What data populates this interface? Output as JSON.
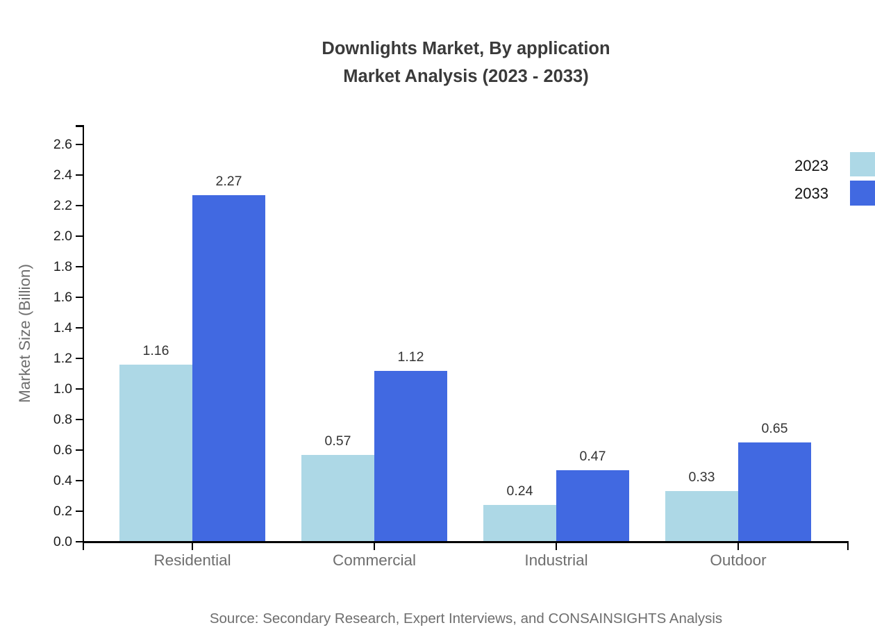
{
  "title": {
    "line1": "Downlights Market, By application",
    "line2": "Market Analysis (2023 - 2033)"
  },
  "chart_data": {
    "type": "bar",
    "title": "Downlights Market, By application Market Analysis (2023 - 2033)",
    "categories": [
      "Residential",
      "Commercial",
      "Industrial",
      "Outdoor"
    ],
    "series": [
      {
        "name": "2023",
        "color": "#add8e6",
        "values": [
          1.16,
          0.57,
          0.24,
          0.33
        ]
      },
      {
        "name": "2033",
        "color": "#4169e1",
        "values": [
          2.27,
          1.12,
          0.47,
          0.65
        ]
      }
    ],
    "xlabel": "",
    "ylabel": "Market Size (Billion)",
    "ylim": [
      0.0,
      2.6
    ],
    "ytick_step": 0.2,
    "grid": false,
    "legend_position": "top-right",
    "bar_value_labels": true
  },
  "source": {
    "text": "Source: Secondary Research, Expert Interviews, and CONSAINSIGHTS Analysis"
  },
  "colors": {
    "bar_2023": "#add8e6",
    "bar_2033": "#4169e1",
    "title_text": "#3a3a3a",
    "ytick_label": "#1b1b1b",
    "category_label": "#6e6e6e",
    "axis_title": "#6e6e6e",
    "value_label": "#333333",
    "legend_label": "#111111",
    "source_text": "#6e6e6e",
    "axis_line": "#000000",
    "background": "#ffffff"
  }
}
